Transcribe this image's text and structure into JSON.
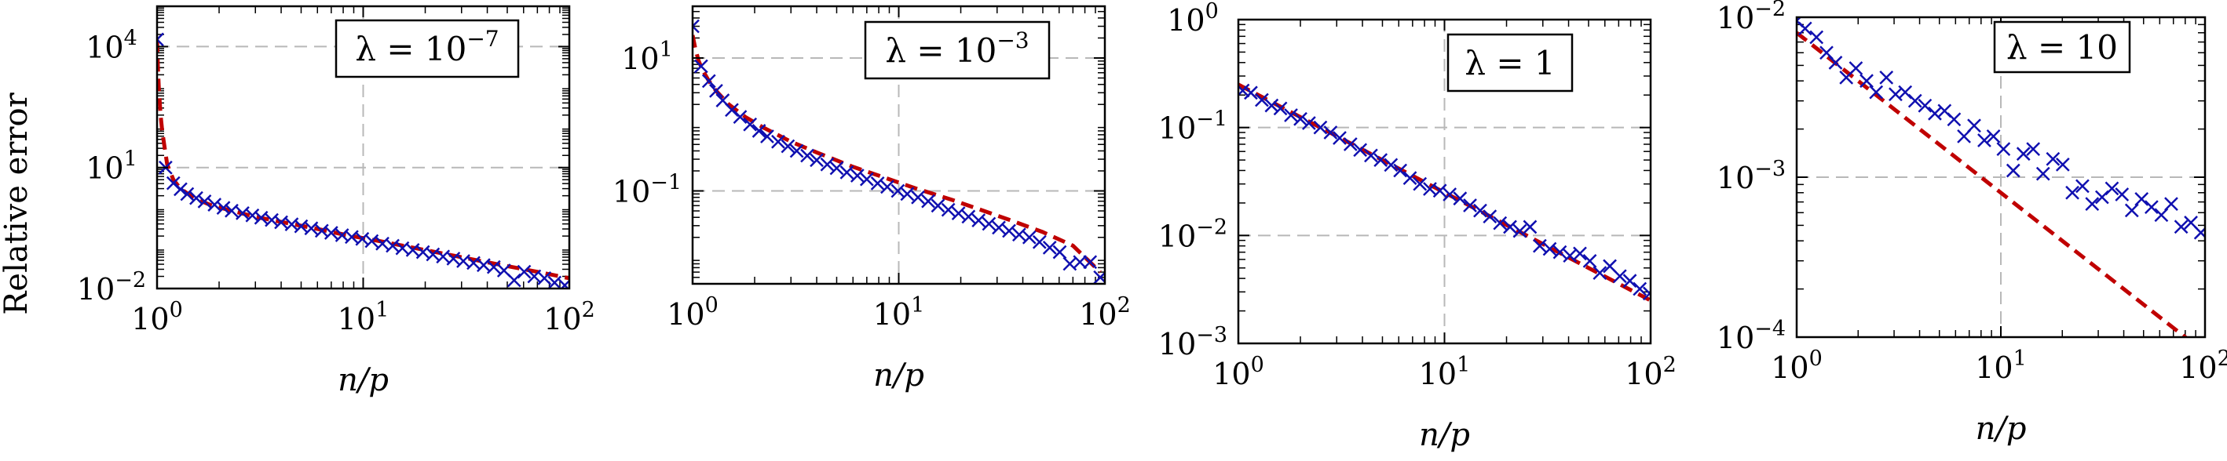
{
  "figure": {
    "shared_ylabel": "Relative error",
    "colors": {
      "empirical": "#1010b0",
      "theory": "#c00000",
      "grid": "#b8b8b8"
    }
  },
  "chart_data": [
    {
      "type": "line",
      "legend": {
        "prefix": "λ = ",
        "base": "10",
        "exp": "−7"
      },
      "xlabel": "n/p",
      "ylabel": "Relative error",
      "x_scale": "log",
      "y_scale": "log",
      "xlim": [
        1,
        100
      ],
      "ylim": [
        0.01,
        100000
      ],
      "x_ticks": [
        {
          "base": "10",
          "exp": "0",
          "value": 1
        },
        {
          "base": "10",
          "exp": "1",
          "value": 10
        },
        {
          "base": "10",
          "exp": "2",
          "value": 100
        }
      ],
      "y_ticks": [
        {
          "base": "10",
          "exp": "−2",
          "value": 0.01
        },
        {
          "base": "10",
          "exp": "1",
          "value": 10
        },
        {
          "base": "10",
          "exp": "4",
          "value": 10000
        }
      ],
      "grid": true,
      "legend_position": "top-right",
      "series": [
        {
          "style": "markers-x",
          "x": [
            1.0,
            1.1,
            1.2,
            1.3,
            1.4,
            1.55,
            1.7,
            1.9,
            2.1,
            2.3,
            2.6,
            2.9,
            3.2,
            3.6,
            4.0,
            4.5,
            5.0,
            5.6,
            6.3,
            7.0,
            7.9,
            8.8,
            9.9,
            11.0,
            12.4,
            13.9,
            15.5,
            17.4,
            19.5,
            21.8,
            24.4,
            27.4,
            30.6,
            34.3,
            38.4,
            43.0,
            48.2,
            54.0,
            60.4,
            67.6,
            75.7,
            84.8,
            95.0
          ],
          "y": [
            15000,
            10,
            4.1,
            2.9,
            2.2,
            1.75,
            1.45,
            1.2,
            1.0,
            0.85,
            0.74,
            0.65,
            0.57,
            0.5,
            0.44,
            0.39,
            0.35,
            0.31,
            0.27,
            0.24,
            0.21,
            0.19,
            0.17,
            0.15,
            0.13,
            0.115,
            0.1,
            0.09,
            0.08,
            0.07,
            0.062,
            0.055,
            0.048,
            0.043,
            0.038,
            0.034,
            0.028,
            0.016,
            0.026,
            0.02,
            0.018,
            0.014,
            0.012
          ]
        },
        {
          "style": "dashed-line",
          "x": [
            1.0,
            1.01,
            1.02,
            1.04,
            1.06,
            1.09,
            1.12,
            1.2,
            1.3,
            1.5,
            1.8,
            2.2,
            3,
            4,
            6,
            8,
            12,
            18,
            25,
            35,
            50,
            70,
            100
          ],
          "y": [
            15000,
            3000,
            900,
            200,
            80,
            30,
            12,
            5,
            3.0,
            1.8,
            1.2,
            0.9,
            0.6,
            0.45,
            0.3,
            0.22,
            0.15,
            0.1,
            0.072,
            0.051,
            0.036,
            0.026,
            0.018
          ]
        }
      ]
    },
    {
      "type": "line",
      "legend": {
        "prefix": "λ = ",
        "base": "10",
        "exp": "−3"
      },
      "xlabel": "n/p",
      "ylabel": "",
      "x_scale": "log",
      "y_scale": "log",
      "xlim": [
        1,
        100
      ],
      "ylim": [
        0.004,
        60
      ],
      "x_ticks": [
        {
          "base": "10",
          "exp": "0",
          "value": 1
        },
        {
          "base": "10",
          "exp": "1",
          "value": 10
        },
        {
          "base": "10",
          "exp": "2",
          "value": 100
        }
      ],
      "y_ticks": [
        {
          "base": "10",
          "exp": "−1",
          "value": 0.1
        },
        {
          "base": "10",
          "exp": "1",
          "value": 10
        }
      ],
      "grid": true,
      "legend_position": "top-right",
      "series": [
        {
          "style": "markers-x",
          "x": [
            1.0,
            1.1,
            1.2,
            1.3,
            1.4,
            1.55,
            1.7,
            1.9,
            2.1,
            2.3,
            2.6,
            2.9,
            3.2,
            3.6,
            4.0,
            4.5,
            5.0,
            5.6,
            6.3,
            7.0,
            7.9,
            8.8,
            9.9,
            11.0,
            12.4,
            13.9,
            15.5,
            17.4,
            19.5,
            21.8,
            24.4,
            27.4,
            30.6,
            34.3,
            38.4,
            43.0,
            48.2,
            54.0,
            60.4,
            67.6,
            75.7,
            84.8,
            95.0
          ],
          "y": [
            30,
            7.5,
            4.5,
            3.2,
            2.3,
            1.65,
            1.3,
            1.0,
            0.8,
            0.66,
            0.55,
            0.47,
            0.4,
            0.34,
            0.29,
            0.25,
            0.22,
            0.19,
            0.17,
            0.15,
            0.13,
            0.115,
            0.1,
            0.09,
            0.08,
            0.07,
            0.06,
            0.052,
            0.046,
            0.041,
            0.036,
            0.032,
            0.028,
            0.025,
            0.022,
            0.02,
            0.017,
            0.014,
            0.012,
            0.008,
            0.0085,
            0.0085,
            0.005
          ]
        },
        {
          "style": "dashed-line",
          "x": [
            1.0,
            1.03,
            1.07,
            1.12,
            1.2,
            1.3,
            1.5,
            1.8,
            2.2,
            3,
            4,
            6,
            8,
            12,
            18,
            25,
            35,
            50,
            70,
            95
          ],
          "y": [
            22,
            14,
            9,
            6.5,
            4.5,
            3.2,
            2.0,
            1.3,
            0.9,
            0.55,
            0.38,
            0.23,
            0.17,
            0.11,
            0.074,
            0.052,
            0.036,
            0.024,
            0.015,
            0.006
          ]
        }
      ]
    },
    {
      "type": "line",
      "legend": {
        "prefix": "λ = ",
        "base": "1",
        "exp": ""
      },
      "xlabel": "n/p",
      "ylabel": "",
      "x_scale": "log",
      "y_scale": "log",
      "xlim": [
        1,
        100
      ],
      "ylim": [
        0.001,
        1
      ],
      "x_ticks": [
        {
          "base": "10",
          "exp": "0",
          "value": 1
        },
        {
          "base": "10",
          "exp": "1",
          "value": 10
        },
        {
          "base": "10",
          "exp": "2",
          "value": 100
        }
      ],
      "y_ticks": [
        {
          "base": "10",
          "exp": "−3",
          "value": 0.001
        },
        {
          "base": "10",
          "exp": "−2",
          "value": 0.01
        },
        {
          "base": "10",
          "exp": "−1",
          "value": 0.1
        },
        {
          "base": "10",
          "exp": "0",
          "value": 1
        }
      ],
      "grid": true,
      "legend_position": "top-right",
      "series": [
        {
          "style": "markers-x",
          "x": [
            1.05,
            1.15,
            1.3,
            1.45,
            1.6,
            1.8,
            2.0,
            2.2,
            2.5,
            2.8,
            3.1,
            3.5,
            3.9,
            4.4,
            4.9,
            5.5,
            6.1,
            6.8,
            7.6,
            8.5,
            9.5,
            10.6,
            11.9,
            13.3,
            14.9,
            16.6,
            18.6,
            20.8,
            23.2,
            26.0,
            29.0,
            32.4,
            36.3,
            40.6,
            45.4,
            50.7,
            56.7,
            63.4,
            70.9,
            79.3,
            88.6,
            99.0
          ],
          "y": [
            0.22,
            0.21,
            0.18,
            0.16,
            0.15,
            0.13,
            0.12,
            0.11,
            0.1,
            0.09,
            0.08,
            0.07,
            0.062,
            0.055,
            0.05,
            0.045,
            0.04,
            0.034,
            0.03,
            0.027,
            0.026,
            0.024,
            0.022,
            0.019,
            0.017,
            0.015,
            0.013,
            0.012,
            0.011,
            0.012,
            0.008,
            0.0075,
            0.007,
            0.0065,
            0.0068,
            0.0058,
            0.0045,
            0.0052,
            0.0042,
            0.0038,
            0.0032,
            0.0029
          ]
        },
        {
          "style": "dashed-line",
          "x": [
            1,
            100
          ],
          "y": [
            0.25,
            0.0025
          ]
        }
      ]
    },
    {
      "type": "line",
      "legend": {
        "prefix": "λ = ",
        "base": "10",
        "exp": ""
      },
      "xlabel": "n/p",
      "ylabel": "",
      "x_scale": "log",
      "y_scale": "log",
      "xlim": [
        1,
        100
      ],
      "ylim": [
        0.0001,
        0.01
      ],
      "x_ticks": [
        {
          "base": "10",
          "exp": "0",
          "value": 1
        },
        {
          "base": "10",
          "exp": "1",
          "value": 10
        },
        {
          "base": "10",
          "exp": "2",
          "value": 100
        }
      ],
      "y_ticks": [
        {
          "base": "10",
          "exp": "−4",
          "value": 0.0001
        },
        {
          "base": "10",
          "exp": "−3",
          "value": 0.001
        },
        {
          "base": "10",
          "exp": "−2",
          "value": 0.01
        }
      ],
      "grid": true,
      "legend_position": "top-right",
      "series": [
        {
          "style": "markers-x",
          "x": [
            1.0,
            1.1,
            1.25,
            1.4,
            1.55,
            1.75,
            1.95,
            2.2,
            2.45,
            2.75,
            3.05,
            3.4,
            3.8,
            4.25,
            4.75,
            5.3,
            5.9,
            6.6,
            7.4,
            8.3,
            9.2,
            10.3,
            11.5,
            12.9,
            14.4,
            16.1,
            18.0,
            20.1,
            22.4,
            25.1,
            28.0,
            31.3,
            35.0,
            39.2,
            43.8,
            48.9,
            54.7,
            61.1,
            68.3,
            76.4,
            85.3,
            95.4
          ],
          "y": [
            0.0095,
            0.0085,
            0.0075,
            0.006,
            0.0052,
            0.0042,
            0.0048,
            0.004,
            0.0034,
            0.0042,
            0.0033,
            0.0034,
            0.003,
            0.0028,
            0.0025,
            0.0026,
            0.0023,
            0.0018,
            0.0021,
            0.0017,
            0.0018,
            0.0015,
            0.0011,
            0.0014,
            0.0015,
            0.00105,
            0.0013,
            0.0012,
            0.0008,
            0.00088,
            0.00068,
            0.00075,
            0.00085,
            0.00078,
            0.00062,
            0.00073,
            0.00065,
            0.00058,
            0.00068,
            0.00049,
            0.00052,
            0.00045
          ]
        },
        {
          "style": "dashed-line",
          "x": [
            1,
            100
          ],
          "y": [
            0.008,
            8e-05
          ]
        }
      ]
    }
  ]
}
